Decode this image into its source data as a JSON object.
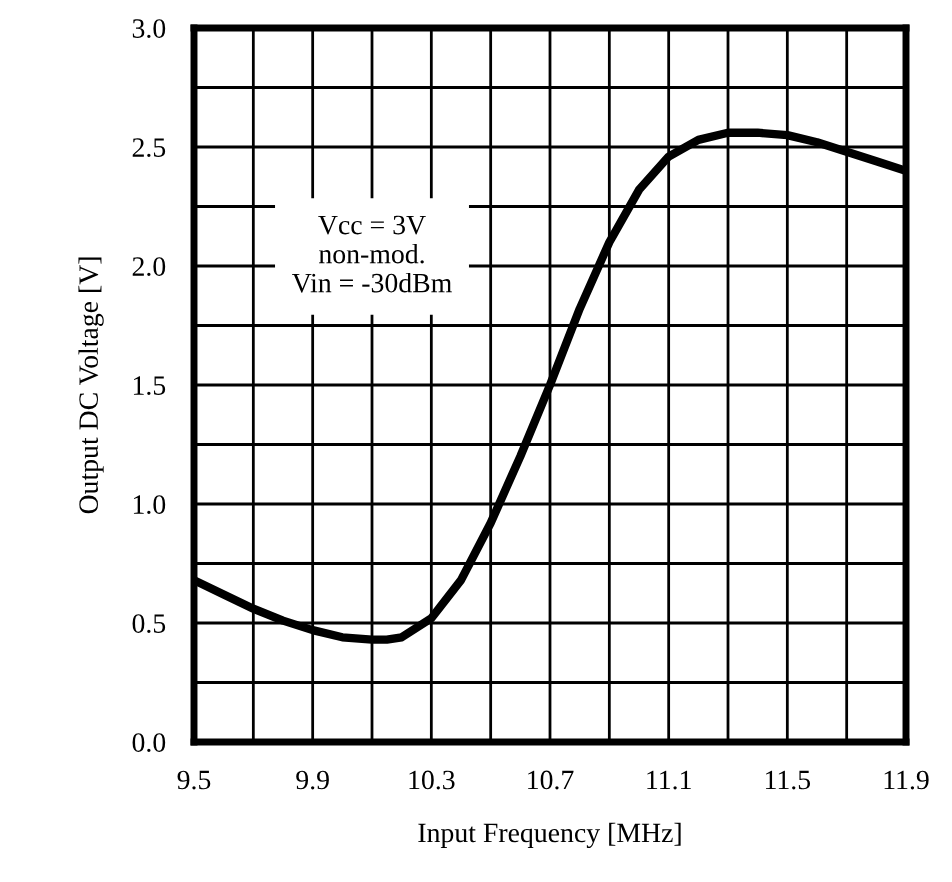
{
  "chart_data": {
    "type": "line",
    "xlabel": "Input Frequency [MHz]",
    "ylabel": "Output DC Voltage [V]",
    "x": [
      9.5,
      9.6,
      9.7,
      9.8,
      9.9,
      10.0,
      10.1,
      10.15,
      10.2,
      10.3,
      10.4,
      10.5,
      10.6,
      10.7,
      10.8,
      10.9,
      11.0,
      11.1,
      11.2,
      11.3,
      11.4,
      11.5,
      11.6,
      11.7,
      11.8,
      11.9
    ],
    "series": [
      {
        "color": "#000000",
        "values": [
          0.68,
          0.62,
          0.56,
          0.51,
          0.47,
          0.44,
          0.43,
          0.43,
          0.44,
          0.52,
          0.68,
          0.92,
          1.2,
          1.5,
          1.82,
          2.1,
          2.32,
          2.46,
          2.53,
          2.56,
          2.56,
          2.55,
          2.52,
          2.48,
          2.44,
          2.4
        ]
      }
    ],
    "xlim": [
      9.5,
      11.9
    ],
    "xticks": [
      9.5,
      {
        "value": 9.7,
        "label": null
      },
      9.9,
      {
        "value": 10.1,
        "label": null
      },
      10.3,
      {
        "value": 10.5,
        "label": null
      },
      10.7,
      {
        "value": 10.9,
        "label": null
      },
      11.1,
      {
        "value": 11.3,
        "label": null
      },
      11.5,
      {
        "value": 11.7,
        "label": null
      },
      11.9
    ],
    "ylim": [
      0,
      3
    ],
    "yticks": [
      {
        "value": 0,
        "label": "0.0"
      },
      {
        "value": 0.25,
        "label": null
      },
      {
        "value": 0.5,
        "label": "0.5"
      },
      {
        "value": 0.75,
        "label": null
      },
      {
        "value": 1,
        "label": "1.0"
      },
      {
        "value": 1.25,
        "label": null
      },
      {
        "value": 1.5,
        "label": "1.5"
      },
      {
        "value": 1.75,
        "label": null
      },
      {
        "value": 2,
        "label": "2.0"
      },
      {
        "value": 2.25,
        "label": null
      },
      {
        "value": 2.5,
        "label": "2.5"
      },
      {
        "value": 2.75,
        "label": null
      },
      {
        "value": 3,
        "label": "3.0"
      }
    ],
    "grid": true,
    "line_style": "solid",
    "marker": "none",
    "annotations": [
      "Vcc = 3V\nnon-mod.\nVin = -30dBm"
    ]
  }
}
